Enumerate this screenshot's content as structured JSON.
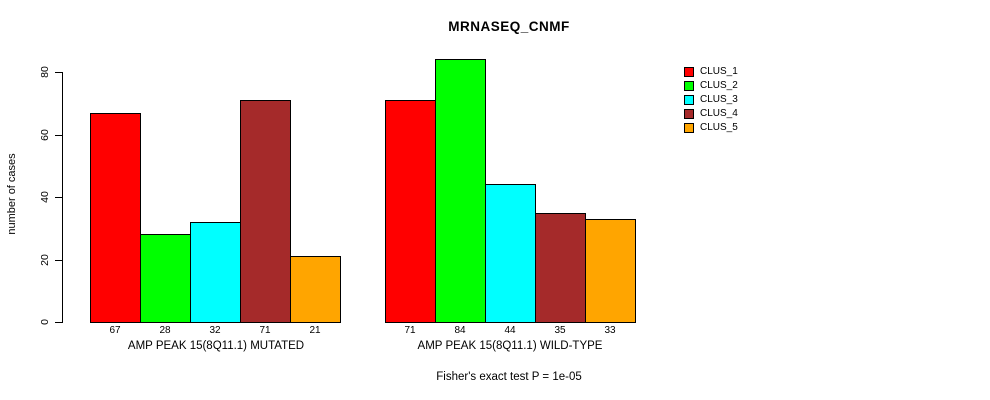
{
  "title": "MRNASEQ_CNMF",
  "footer": "Fisher's exact test P = 1e-05",
  "chart_data": {
    "type": "bar",
    "title": "MRNASEQ_CNMF",
    "xlabel": "",
    "ylabel": "number of cases",
    "ylim": [
      0,
      80
    ],
    "yticks": [
      "0",
      "20",
      "40",
      "60",
      "80"
    ],
    "grid": false,
    "legend_position": "right",
    "categories": [
      "AMP PEAK 15(8Q11.1) MUTATED",
      "AMP PEAK 15(8Q11.1) WILD-TYPE"
    ],
    "series": [
      {
        "name": "CLUS_1",
        "color": "#FF0000",
        "values": [
          67,
          71
        ]
      },
      {
        "name": "CLUS_2",
        "color": "#00FF00",
        "values": [
          28,
          84
        ]
      },
      {
        "name": "CLUS_3",
        "color": "#00FFFF",
        "values": [
          32,
          44
        ]
      },
      {
        "name": "CLUS_4",
        "color": "#A52A2A",
        "values": [
          71,
          35
        ]
      },
      {
        "name": "CLUS_5",
        "color": "#FFA500",
        "values": [
          21,
          33
        ]
      }
    ],
    "bar_value_labels_shown": true,
    "annotation": "Fisher's exact test P = 1e-05"
  }
}
